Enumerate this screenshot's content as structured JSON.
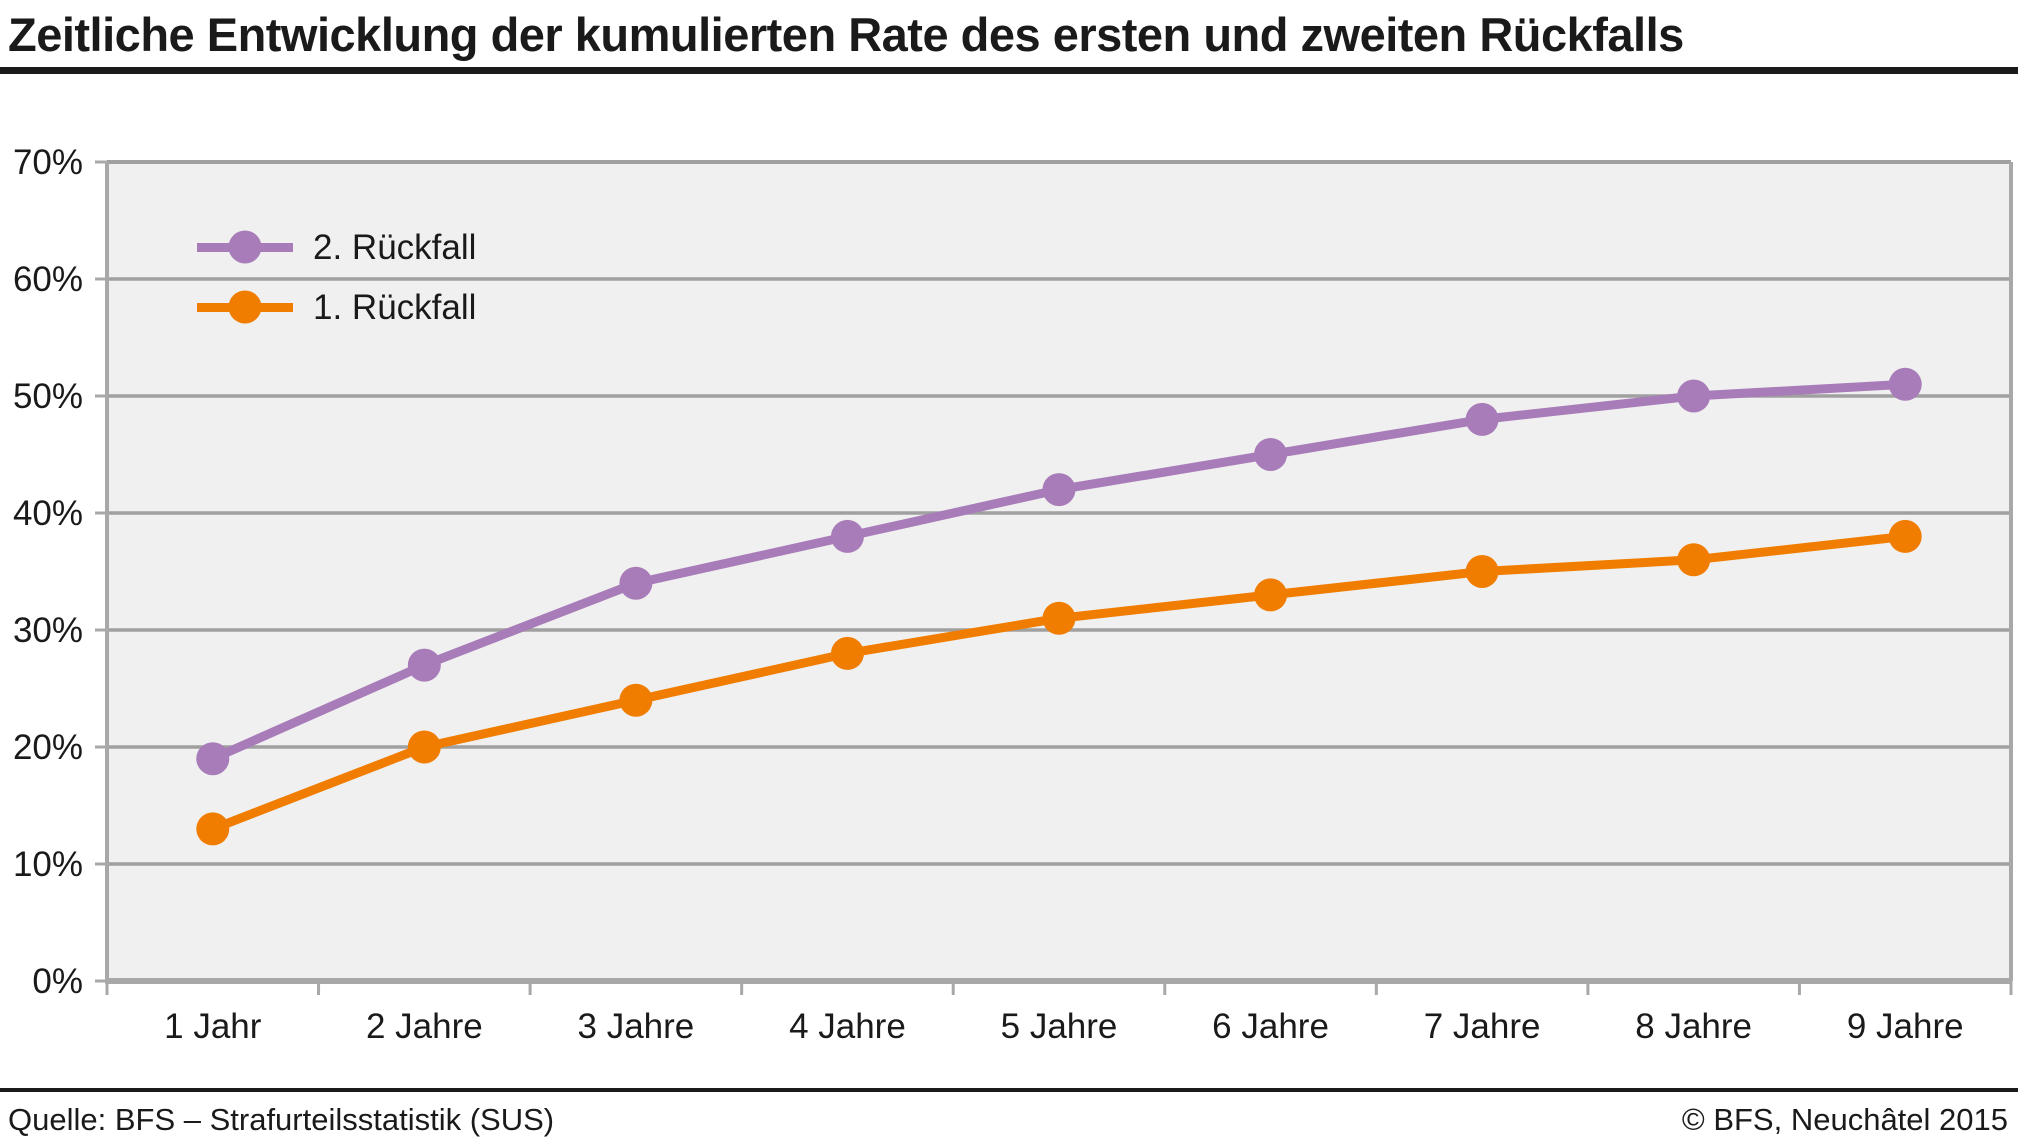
{
  "chart_data": {
    "type": "line",
    "title": "Zeitliche Entwicklung der kumulierten Rate des ersten und zweiten Rückfalls",
    "xlabel": "",
    "ylabel": "",
    "categories": [
      "1 Jahr",
      "2 Jahre",
      "3 Jahre",
      "4 Jahre",
      "5 Jahre",
      "6 Jahre",
      "7 Jahre",
      "8 Jahre",
      "9 Jahre"
    ],
    "series": [
      {
        "name": "2. Rückfall",
        "color": "#a87cb8",
        "values": [
          19,
          27,
          34,
          38,
          42,
          45,
          48,
          50,
          51
        ]
      },
      {
        "name": "1. Rückfall",
        "color": "#f07d00",
        "values": [
          13,
          20,
          24,
          28,
          31,
          33,
          35,
          36,
          38
        ]
      }
    ],
    "ylim": [
      0,
      70
    ],
    "ytick_values": [
      0,
      10,
      20,
      30,
      40,
      50,
      60,
      70
    ],
    "ytick_labels": [
      "0%",
      "10%",
      "20%",
      "30%",
      "40%",
      "50%",
      "60%",
      "70%"
    ],
    "grid": true,
    "legend_position": "inside-top-left",
    "colors": {
      "plot_background": "#f0f0f0",
      "gridline": "#a0a0a0",
      "axis": "#a8a8a8",
      "text": "#1a1a1a",
      "rule": "#1a1a1a"
    }
  },
  "footer": {
    "source": "Quelle: BFS – Strafurteilsstatistik (SUS)",
    "copyright": "© BFS, Neuchâtel 2015"
  }
}
